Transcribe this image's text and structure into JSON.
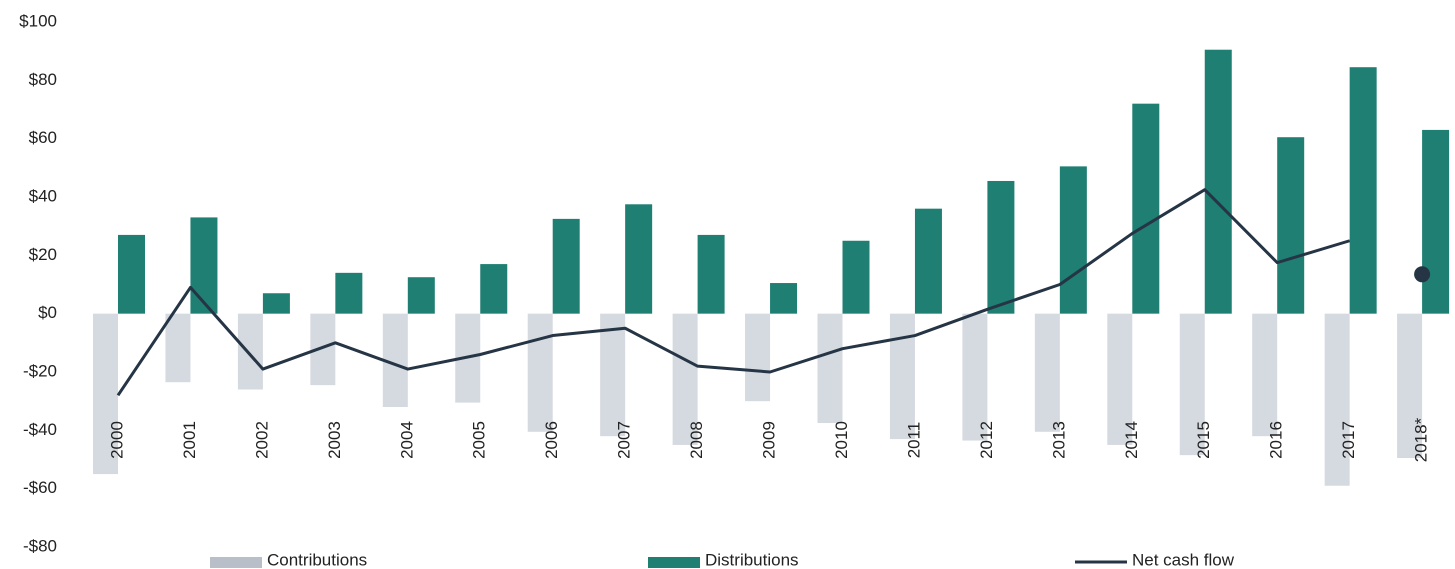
{
  "chart_data": {
    "type": "bar-line",
    "categories": [
      "2000",
      "2001",
      "2002",
      "2003",
      "2004",
      "2005",
      "2006",
      "2007",
      "2008",
      "2009",
      "2010",
      "2011",
      "2012",
      "2013",
      "2014",
      "2015",
      "2016",
      "2017",
      "2018*"
    ],
    "series": [
      {
        "name": "Contributions",
        "type": "bar",
        "color": "#d5d9e0",
        "legend_color": "#b9bfc8",
        "values": [
          -55,
          -23.5,
          -26,
          -24.5,
          -32,
          -30.5,
          -40.5,
          -42,
          -45,
          -30,
          -37.5,
          -43,
          -43.5,
          -40.5,
          -45,
          -48.5,
          -42,
          -59,
          -49.5
        ]
      },
      {
        "name": "Distributions",
        "type": "bar",
        "color": "#1f7f73",
        "values": [
          27,
          33,
          7,
          14,
          12.5,
          17,
          32.5,
          37.5,
          27,
          10.5,
          25,
          36,
          45.5,
          50.5,
          72,
          90.5,
          60.5,
          84.5,
          63
        ]
      },
      {
        "name": "Net cash flow",
        "type": "line",
        "color": "#253545",
        "last_point_style": "dot",
        "values": [
          -28,
          9,
          -19,
          -10,
          -19,
          -14,
          -7.5,
          -5,
          -18,
          -20,
          -12,
          -7.5,
          1.5,
          10,
          27.5,
          42.5,
          17.5,
          25,
          13.5
        ]
      }
    ],
    "ylim": [
      -80,
      100
    ],
    "yticks": [
      {
        "value": 100,
        "label": "$100"
      },
      {
        "value": 80,
        "label": "$80"
      },
      {
        "value": 60,
        "label": "$60"
      },
      {
        "value": 40,
        "label": "$40"
      },
      {
        "value": 20,
        "label": "$20"
      },
      {
        "value": 0,
        "label": "$0"
      },
      {
        "value": -20,
        "label": "-$20"
      },
      {
        "value": -40,
        "label": "-$40"
      },
      {
        "value": -60,
        "label": "-$60"
      },
      {
        "value": -80,
        "label": "-$80"
      }
    ],
    "negative_tick_color": "#c00000",
    "grid": false,
    "legend": "bottom"
  }
}
